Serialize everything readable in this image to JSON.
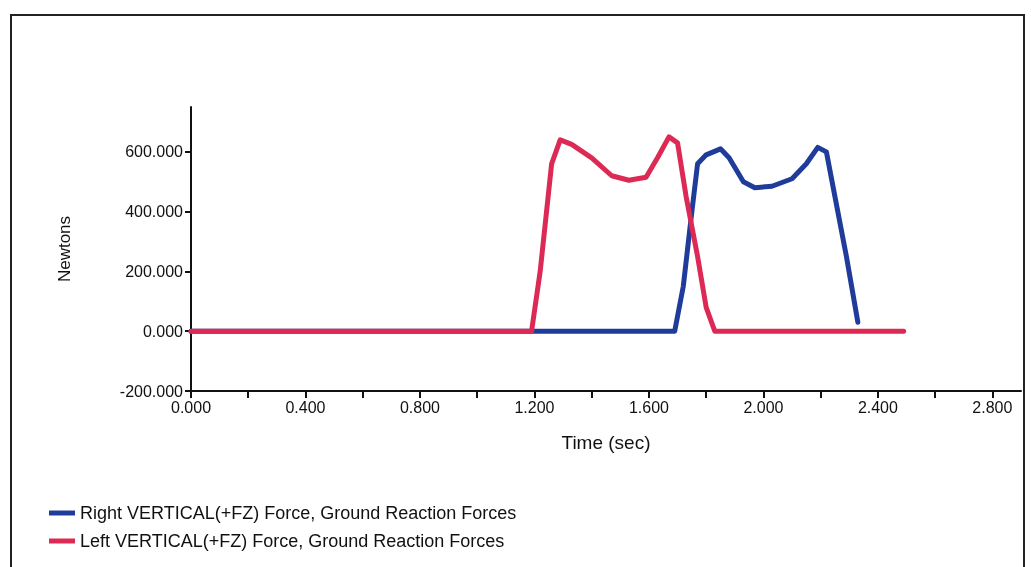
{
  "chart_data": {
    "type": "line",
    "xlabel": "Time (sec)",
    "ylabel": "Newtons",
    "xlim": [
      0,
      2.9
    ],
    "xticks": [
      {
        "value": 0,
        "label": "0.000"
      },
      {
        "value": 0.2,
        "label": null
      },
      {
        "value": 0.4,
        "label": "0.400"
      },
      {
        "value": 0.6,
        "label": null
      },
      {
        "value": 0.8,
        "label": "0.800"
      },
      {
        "value": 1.0,
        "label": null
      },
      {
        "value": 1.2,
        "label": "1.200"
      },
      {
        "value": 1.4,
        "label": null
      },
      {
        "value": 1.6,
        "label": "1.600"
      },
      {
        "value": 1.8,
        "label": null
      },
      {
        "value": 2.0,
        "label": "2.000"
      },
      {
        "value": 2.2,
        "label": null
      },
      {
        "value": 2.4,
        "label": "2.400"
      },
      {
        "value": 2.6,
        "label": null
      },
      {
        "value": 2.8,
        "label": "2.800"
      }
    ],
    "ylim": [
      -200,
      750
    ],
    "yticks": [
      {
        "value": -200,
        "label": "-200.000"
      },
      {
        "value": 0,
        "label": "0.000"
      },
      {
        "value": 200,
        "label": "200.000"
      },
      {
        "value": 400,
        "label": "400.000"
      },
      {
        "value": 600,
        "label": "600.000"
      }
    ],
    "grid": false,
    "legend": "bottom left",
    "marker": "none",
    "line_style": "solid",
    "series": [
      {
        "name": "Right VERTICAL(+FZ) Force, Ground Reaction Forces",
        "color": "#1f3c9a",
        "x": [
          0,
          1.69,
          1.72,
          1.75,
          1.77,
          1.8,
          1.85,
          1.88,
          1.93,
          1.97,
          2.03,
          2.1,
          2.15,
          2.19,
          2.22,
          2.25,
          2.29,
          2.33
        ],
        "values": [
          0,
          0,
          150,
          400,
          560,
          590,
          610,
          580,
          500,
          480,
          485,
          510,
          560,
          615,
          600,
          450,
          250,
          30
        ]
      },
      {
        "name": "Left VERTICAL(+FZ) Force, Ground Reaction Forces",
        "color": "#dc2a55",
        "x": [
          0,
          1.19,
          1.22,
          1.26,
          1.29,
          1.33,
          1.4,
          1.47,
          1.53,
          1.59,
          1.63,
          1.67,
          1.7,
          1.73,
          1.77,
          1.8,
          1.83,
          2.49
        ],
        "values": [
          0,
          0,
          200,
          560,
          640,
          625,
          580,
          520,
          505,
          515,
          580,
          650,
          630,
          450,
          250,
          80,
          0,
          0
        ]
      }
    ]
  }
}
